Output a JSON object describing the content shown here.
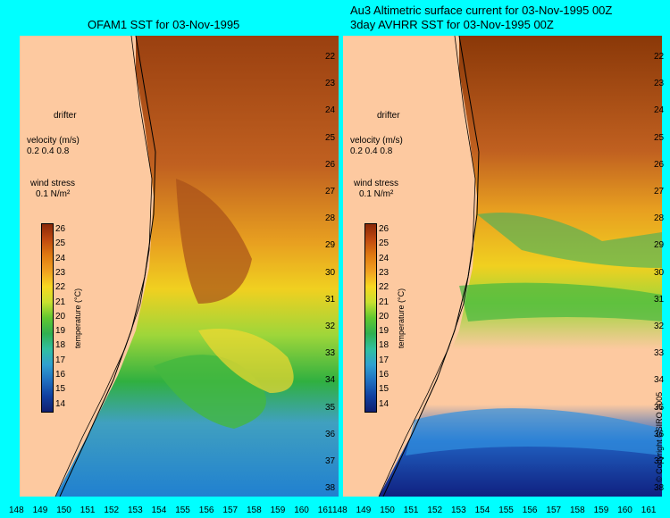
{
  "left_panel": {
    "title": "OFAM1 SST for 03-Nov-1995",
    "legend": {
      "drifter": "drifter",
      "velocity_label": "velocity (m/s)",
      "velocity_values": "0.2 0.4 0.8",
      "wind_label": "wind stress",
      "wind_value": "0.1 N/m²"
    }
  },
  "right_panel": {
    "title_line1": "Au3 Altimetric surface current for 03-Nov-1995 00Z",
    "title_line2": "3day AVHRR SST for 03-Nov-1995 00Z",
    "legend": {
      "drifter": "drifter",
      "velocity_label": "velocity (m/s)",
      "velocity_values": "0.2 0.4 0.8",
      "wind_label": "wind stress",
      "wind_value": "0.1 N/m²"
    }
  },
  "colorbar": {
    "label": "temperature (°C)",
    "ticks": [
      "26",
      "25",
      "24",
      "23",
      "22",
      "21",
      "20",
      "19",
      "18",
      "17",
      "16",
      "15",
      "14"
    ]
  },
  "lat_ticks": [
    "22",
    "23",
    "24",
    "25",
    "26",
    "27",
    "28",
    "29",
    "30",
    "31",
    "32",
    "33",
    "34",
    "35",
    "36",
    "37",
    "38"
  ],
  "lon_ticks": [
    "148",
    "149",
    "150",
    "151",
    "152",
    "153",
    "154",
    "155",
    "156",
    "157",
    "158",
    "159",
    "160",
    "161"
  ],
  "copyright": "© Copyright CSIRO 2005",
  "colors": {
    "background": "#00ffff",
    "land": "#fdc9a0",
    "arrow_current": "#000000",
    "arrow_wind": "#ff00ff"
  }
}
